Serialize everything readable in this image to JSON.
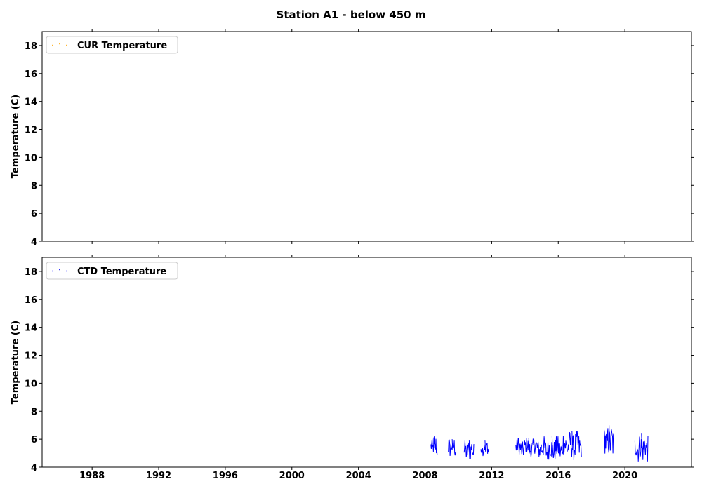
{
  "figure_title": "Station A1 - below 450 m",
  "chart_data": [
    {
      "type": "scatter",
      "title": "",
      "xlabel": "",
      "ylabel": "Temperature (C)",
      "xlim": [
        1985,
        2024
      ],
      "ylim": [
        4,
        19
      ],
      "yticks": [
        4,
        6,
        8,
        10,
        12,
        14,
        16,
        18
      ],
      "xticks": [],
      "legend": "top-left",
      "grid": false,
      "series": [
        {
          "name": "CUR Temperature",
          "color": "#ffa500",
          "segments": []
        }
      ]
    },
    {
      "type": "scatter",
      "title": "",
      "xlabel": "",
      "ylabel": "Temperature (C)",
      "xlim": [
        1985,
        2024
      ],
      "ylim": [
        4,
        19
      ],
      "yticks": [
        4,
        6,
        8,
        10,
        12,
        14,
        16,
        18
      ],
      "xticks": [
        "1988",
        "1992",
        "1996",
        "2000",
        "2004",
        "2008",
        "2012",
        "2016",
        "2020"
      ],
      "legend": "top-left",
      "grid": false,
      "series": [
        {
          "name": "CTD Temperature",
          "color": "#0000ff",
          "segments": [
            {
              "start": 2008.35,
              "end": 2008.75,
              "min": 4.6,
              "max": 6.2
            },
            {
              "start": 2009.4,
              "end": 2009.85,
              "min": 4.8,
              "max": 6.0
            },
            {
              "start": 2010.35,
              "end": 2010.95,
              "min": 4.5,
              "max": 5.9
            },
            {
              "start": 2011.35,
              "end": 2011.85,
              "min": 4.8,
              "max": 5.9
            },
            {
              "start": 2013.45,
              "end": 2015.0,
              "min": 4.7,
              "max": 6.1
            },
            {
              "start": 2015.0,
              "end": 2016.25,
              "min": 4.4,
              "max": 6.2
            },
            {
              "start": 2016.25,
              "end": 2017.4,
              "min": 4.5,
              "max": 6.6
            },
            {
              "start": 2018.75,
              "end": 2019.35,
              "min": 4.6,
              "max": 7.0
            },
            {
              "start": 2020.6,
              "end": 2021.4,
              "min": 4.4,
              "max": 6.4
            }
          ]
        }
      ]
    }
  ]
}
